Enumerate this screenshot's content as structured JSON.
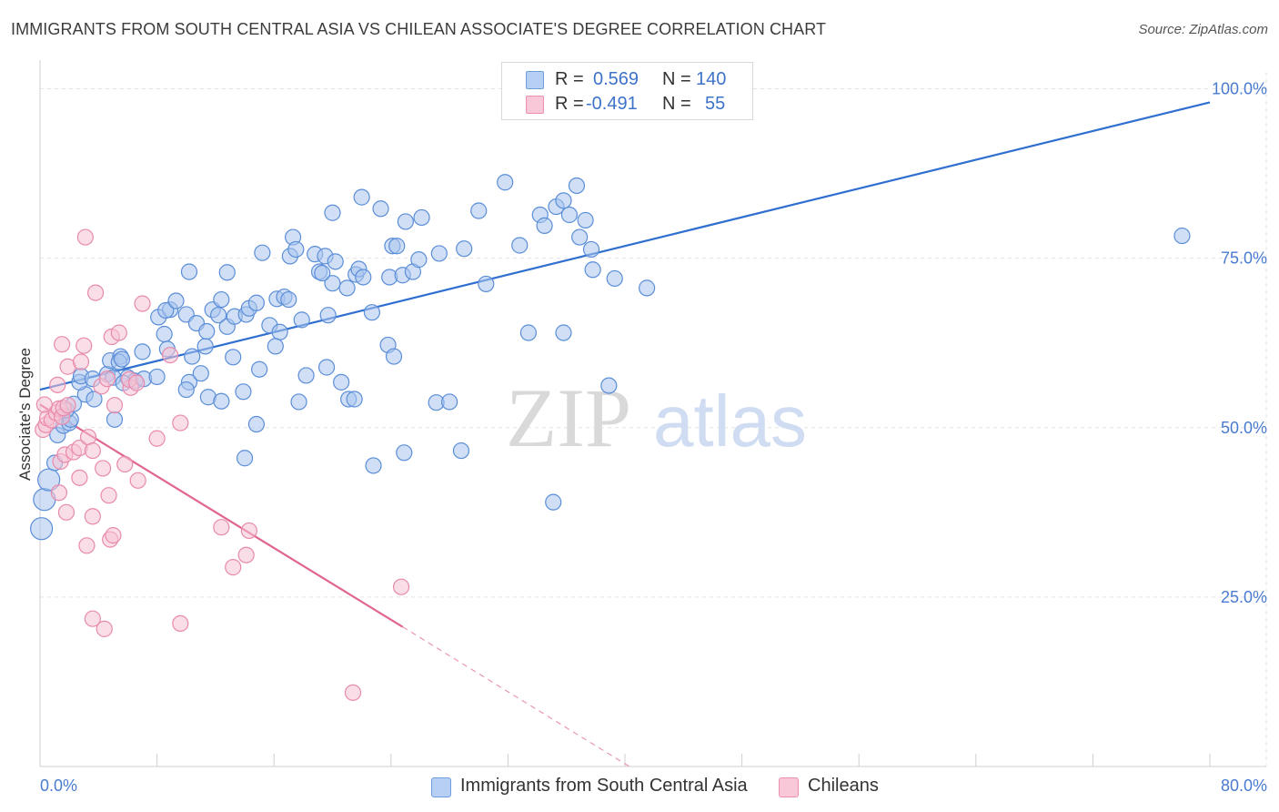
{
  "title": "IMMIGRANTS FROM SOUTH CENTRAL ASIA VS CHILEAN ASSOCIATE'S DEGREE CORRELATION CHART",
  "source": "Source: ZipAtlas.com",
  "watermark": {
    "zip": "ZIP",
    "atlas": "atlas"
  },
  "legend": {
    "r_label": "R =",
    "n_label": "N =",
    "series": [
      {
        "name": "Immigrants from South Central Asia",
        "r": "0.569",
        "n": "140",
        "color": "#6f9ee0"
      },
      {
        "name": "Chileans",
        "r": "-0.491",
        "n": "55",
        "color": "#ee8fb0"
      }
    ]
  },
  "chart_data": {
    "type": "scatter",
    "title": "IMMIGRANTS FROM SOUTH CENTRAL ASIA VS CHILEAN ASSOCIATE'S DEGREE CORRELATION CHART",
    "xlabel": "",
    "ylabel": "Associate's Degree",
    "xlim": [
      0,
      80
    ],
    "ylim": [
      0,
      100
    ],
    "x_tick_labels": [
      "0.0%",
      "80.0%"
    ],
    "y_ticks": [
      25,
      50,
      75,
      100
    ],
    "y_tick_labels": [
      "25.0%",
      "50.0%",
      "75.0%",
      "100.0%"
    ],
    "grid": true,
    "series": [
      {
        "name": "Immigrants from South Central Asia",
        "color": "#6f9ee0",
        "r": 0.569,
        "n": 140,
        "trend": {
          "x": [
            0,
            80
          ],
          "y": [
            55.6,
            98.0
          ]
        },
        "points": [
          [
            0.1,
            35.1
          ],
          [
            0.3,
            39.4
          ],
          [
            0.6,
            42.3
          ],
          [
            1.0,
            44.8
          ],
          [
            1.2,
            48.9
          ],
          [
            1.6,
            50.3
          ],
          [
            2.0,
            50.7
          ],
          [
            2.1,
            51.2
          ],
          [
            1.8,
            52.6
          ],
          [
            2.3,
            53.5
          ],
          [
            3.1,
            54.9
          ],
          [
            3.7,
            54.2
          ],
          [
            2.7,
            56.7
          ],
          [
            2.8,
            57.6
          ],
          [
            3.6,
            57.2
          ],
          [
            4.6,
            57.9
          ],
          [
            5.0,
            57.4
          ],
          [
            6.0,
            57.4
          ],
          [
            6.5,
            56.9
          ],
          [
            5.7,
            56.6
          ],
          [
            4.8,
            59.9
          ],
          [
            5.5,
            60.5
          ],
          [
            5.4,
            59.7
          ],
          [
            5.6,
            60.1
          ],
          [
            5.1,
            51.2
          ],
          [
            7.1,
            57.2
          ],
          [
            8.0,
            57.5
          ],
          [
            10.2,
            56.7
          ],
          [
            10.0,
            55.6
          ],
          [
            7.0,
            61.2
          ],
          [
            8.7,
            61.6
          ],
          [
            8.5,
            63.8
          ],
          [
            10.4,
            60.5
          ],
          [
            11.3,
            62.0
          ],
          [
            8.1,
            66.3
          ],
          [
            8.9,
            67.4
          ],
          [
            8.6,
            67.3
          ],
          [
            10.0,
            66.7
          ],
          [
            9.3,
            68.7
          ],
          [
            10.7,
            65.4
          ],
          [
            11.4,
            64.2
          ],
          [
            11.8,
            67.4
          ],
          [
            12.2,
            66.6
          ],
          [
            12.8,
            64.9
          ],
          [
            12.4,
            68.9
          ],
          [
            13.3,
            66.4
          ],
          [
            14.1,
            66.7
          ],
          [
            14.3,
            67.6
          ],
          [
            14.8,
            68.4
          ],
          [
            16.2,
            69.0
          ],
          [
            16.7,
            69.3
          ],
          [
            17.0,
            68.9
          ],
          [
            15.7,
            65.1
          ],
          [
            16.4,
            64.1
          ],
          [
            17.9,
            65.9
          ],
          [
            13.2,
            60.4
          ],
          [
            11.0,
            58.0
          ],
          [
            11.5,
            54.5
          ],
          [
            12.4,
            53.9
          ],
          [
            13.9,
            55.3
          ],
          [
            15.0,
            58.6
          ],
          [
            16.1,
            62.0
          ],
          [
            18.2,
            57.7
          ],
          [
            19.6,
            58.9
          ],
          [
            20.6,
            56.7
          ],
          [
            21.1,
            54.2
          ],
          [
            21.5,
            54.2
          ],
          [
            17.7,
            53.8
          ],
          [
            14.8,
            50.5
          ],
          [
            14.0,
            45.5
          ],
          [
            10.2,
            73.0
          ],
          [
            12.8,
            72.9
          ],
          [
            15.2,
            75.8
          ],
          [
            17.1,
            75.3
          ],
          [
            17.3,
            78.1
          ],
          [
            17.5,
            76.3
          ],
          [
            18.8,
            75.6
          ],
          [
            19.1,
            73.0
          ],
          [
            19.5,
            75.3
          ],
          [
            20.0,
            71.3
          ],
          [
            20.2,
            74.5
          ],
          [
            19.3,
            72.8
          ],
          [
            21.0,
            70.6
          ],
          [
            21.6,
            72.6
          ],
          [
            21.8,
            73.4
          ],
          [
            22.1,
            72.2
          ],
          [
            23.9,
            72.2
          ],
          [
            22.7,
            67.0
          ],
          [
            19.7,
            66.6
          ],
          [
            23.8,
            62.2
          ],
          [
            24.2,
            60.5
          ],
          [
            20.0,
            81.7
          ],
          [
            22.0,
            84.0
          ],
          [
            24.1,
            76.8
          ],
          [
            24.4,
            76.8
          ],
          [
            24.8,
            72.5
          ],
          [
            25.5,
            73.0
          ],
          [
            25.9,
            74.8
          ],
          [
            27.3,
            75.7
          ],
          [
            29.0,
            76.4
          ],
          [
            30.0,
            82.0
          ],
          [
            30.5,
            71.2
          ],
          [
            31.8,
            86.2
          ],
          [
            32.8,
            76.9
          ],
          [
            33.4,
            64.0
          ],
          [
            34.2,
            81.4
          ],
          [
            34.5,
            79.8
          ],
          [
            35.3,
            82.6
          ],
          [
            35.8,
            83.5
          ],
          [
            36.2,
            81.4
          ],
          [
            36.7,
            85.7
          ],
          [
            36.9,
            78.1
          ],
          [
            37.3,
            80.6
          ],
          [
            37.7,
            76.3
          ],
          [
            37.8,
            73.3
          ],
          [
            39.3,
            72.0
          ],
          [
            41.5,
            70.6
          ],
          [
            35.8,
            64.0
          ],
          [
            25.0,
            80.4
          ],
          [
            26.1,
            81.0
          ],
          [
            23.3,
            82.3
          ],
          [
            38.9,
            56.2
          ],
          [
            27.1,
            53.7
          ],
          [
            28.0,
            53.8
          ],
          [
            24.9,
            46.3
          ],
          [
            28.8,
            46.6
          ],
          [
            22.8,
            44.4
          ],
          [
            35.1,
            39.0
          ],
          [
            78.1,
            78.3
          ]
        ],
        "sizes": {
          "0.1,35.1": "large",
          "0.3,39.4": "large",
          "0.6,42.3": "large",
          "1.0,44.8": "large"
        }
      },
      {
        "name": "Chileans",
        "color": "#ee8fb0",
        "r": -0.491,
        "n": 55,
        "trend": {
          "x": [
            0,
            24.8
          ],
          "y": [
            53.4,
            20.6
          ]
        },
        "trend_dashed": {
          "x": [
            24.8,
            40.3
          ],
          "y": [
            20.6,
            0.0
          ]
        },
        "points": [
          [
            0.2,
            49.7
          ],
          [
            0.4,
            50.4
          ],
          [
            0.5,
            51.4
          ],
          [
            0.8,
            51.1
          ],
          [
            1.1,
            52.2
          ],
          [
            1.3,
            52.8
          ],
          [
            1.5,
            51.6
          ],
          [
            1.6,
            52.9
          ],
          [
            1.9,
            53.3
          ],
          [
            1.2,
            56.3
          ],
          [
            1.4,
            45.0
          ],
          [
            1.7,
            46.0
          ],
          [
            2.3,
            46.4
          ],
          [
            2.7,
            47.0
          ],
          [
            3.3,
            48.6
          ],
          [
            3.6,
            46.6
          ],
          [
            1.9,
            59.0
          ],
          [
            2.8,
            59.7
          ],
          [
            1.5,
            62.3
          ],
          [
            3.0,
            62.1
          ],
          [
            4.2,
            56.1
          ],
          [
            4.6,
            57.2
          ],
          [
            5.1,
            53.3
          ],
          [
            4.9,
            63.4
          ],
          [
            5.4,
            64.0
          ],
          [
            7.0,
            68.3
          ],
          [
            6.2,
            55.9
          ],
          [
            6.1,
            57.1
          ],
          [
            6.6,
            56.6
          ],
          [
            8.9,
            60.7
          ],
          [
            3.8,
            69.9
          ],
          [
            3.1,
            78.1
          ],
          [
            1.3,
            40.4
          ],
          [
            2.7,
            42.6
          ],
          [
            3.6,
            36.9
          ],
          [
            4.3,
            44.0
          ],
          [
            4.7,
            40.0
          ],
          [
            4.8,
            33.5
          ],
          [
            5.0,
            34.1
          ],
          [
            5.8,
            44.6
          ],
          [
            6.7,
            42.2
          ],
          [
            8.0,
            48.4
          ],
          [
            9.6,
            50.7
          ],
          [
            12.4,
            35.3
          ],
          [
            13.2,
            29.4
          ],
          [
            14.1,
            31.2
          ],
          [
            14.3,
            34.8
          ],
          [
            1.8,
            37.5
          ],
          [
            3.2,
            32.6
          ],
          [
            3.6,
            21.8
          ],
          [
            4.4,
            20.3
          ],
          [
            9.6,
            21.1
          ],
          [
            24.7,
            26.5
          ],
          [
            21.4,
            10.9
          ],
          [
            0.3,
            53.4
          ]
        ]
      }
    ]
  },
  "y_axis_label": "Associate's Degree",
  "x_axis": {
    "min_label": "0.0%",
    "max_label": "80.0%"
  }
}
